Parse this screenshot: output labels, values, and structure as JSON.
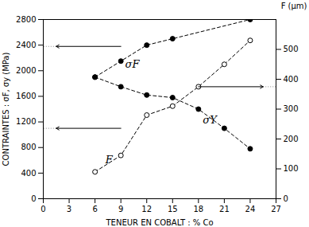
{
  "chart_data": {
    "type": "line",
    "xlabel": "TENEUR EN COBALT : % Co",
    "ylabel": "CONTRAINTES : σF, σy (MPa)",
    "y2label": "F (μm)",
    "xlim": [
      0,
      27
    ],
    "xticks": [
      0,
      3,
      6,
      9,
      12,
      15,
      18,
      21,
      24,
      27
    ],
    "ylim": [
      0,
      2800
    ],
    "yticks": [
      0,
      400,
      800,
      1200,
      1600,
      2000,
      2400,
      2800
    ],
    "y2lim": [
      0,
      600
    ],
    "y2ticks": [
      0,
      100,
      200,
      300,
      400,
      500
    ],
    "grid": false,
    "series": [
      {
        "name": "σF",
        "color": "#000000",
        "marker": "circle",
        "line_style": "dashed",
        "x": [
          6,
          9,
          12,
          15,
          24
        ],
        "values": [
          1900,
          2150,
          2400,
          2500,
          2800
        ]
      },
      {
        "name": "σY",
        "color": "#000000",
        "marker": "circle",
        "line_style": "dashed",
        "x": [
          6,
          9,
          12,
          15,
          18,
          21,
          24
        ],
        "values": [
          1900,
          1750,
          1620,
          1580,
          1400,
          1100,
          780
        ]
      },
      {
        "name": "F",
        "color": "#000000",
        "marker": "circle_open",
        "line_style": "dashed",
        "axis": "y2",
        "x": [
          6,
          9,
          12,
          15,
          18,
          21,
          24
        ],
        "values": [
          90,
          145,
          280,
          310,
          375,
          450,
          530
        ]
      }
    ],
    "annotations": [
      {
        "text": "σF",
        "x": 9.5,
        "y": 2050
      },
      {
        "text": "σY",
        "x": 18.5,
        "y": 1180
      },
      {
        "text": "F",
        "x": 7.2,
        "y": 560
      }
    ],
    "arrows": [
      {
        "x_start": 9.0,
        "x_end": 1.5,
        "y": 2380
      },
      {
        "x_start": 9.0,
        "x_end": 1.5,
        "y": 1100
      },
      {
        "x_start": 18.0,
        "x_end": 25.5,
        "y": 375,
        "axis": "y2"
      }
    ]
  }
}
